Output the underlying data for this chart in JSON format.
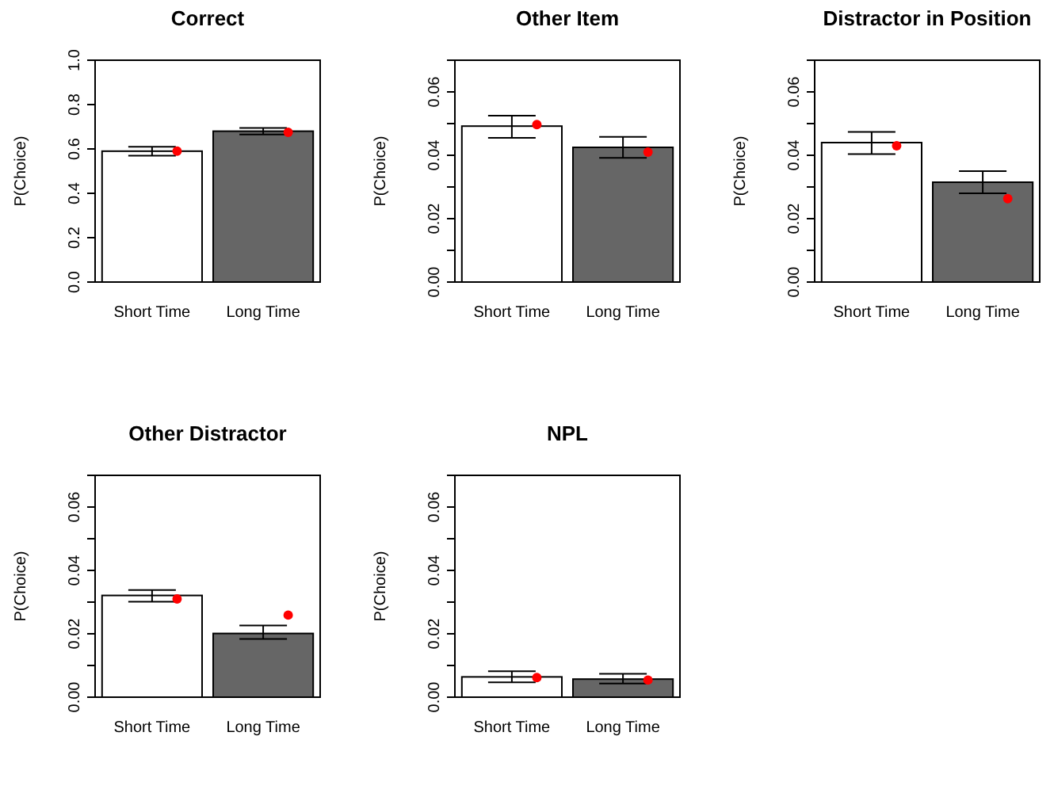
{
  "chart_data": [
    {
      "type": "bar",
      "title": "Correct",
      "ylabel": "P(Choice)",
      "categories": [
        "Short Time",
        "Long Time"
      ],
      "ylim": [
        0,
        1
      ],
      "yticks": [
        {
          "value": 0,
          "label": "0.0"
        },
        {
          "value": 0.2,
          "label": "0.2"
        },
        {
          "value": 0.4,
          "label": "0.4"
        },
        {
          "value": 0.6,
          "label": "0.6"
        },
        {
          "value": 0.8,
          "label": "0.8"
        },
        {
          "value": 1,
          "label": "1.0"
        }
      ],
      "marker": "circle",
      "series": [
        {
          "type": "bar",
          "values": [
            0.59,
            0.68
          ],
          "errors": [
            [
              0.57,
              0.61
            ],
            [
              0.665,
              0.695
            ]
          ],
          "colors": [
            "#ffffff",
            "#666666"
          ]
        },
        {
          "type": "scatter",
          "x": [
            "Short Time",
            "Long Time"
          ],
          "values": [
            0.59,
            0.675
          ],
          "color": "#ff0000"
        }
      ]
    },
    {
      "type": "bar",
      "title": "Other Item",
      "ylabel": "P(Choice)",
      "categories": [
        "Short Time",
        "Long Time"
      ],
      "ylim": [
        0,
        0.07
      ],
      "yticks": [
        {
          "value": 0,
          "label": "0.00"
        },
        {
          "value": 0.01,
          "label": null
        },
        {
          "value": 0.02,
          "label": "0.02"
        },
        {
          "value": 0.03,
          "label": null
        },
        {
          "value": 0.04,
          "label": "0.04"
        },
        {
          "value": 0.05,
          "label": null
        },
        {
          "value": 0.06,
          "label": "0.06"
        },
        {
          "value": 0.07,
          "label": null
        }
      ],
      "marker": "circle",
      "series": [
        {
          "type": "bar",
          "values": [
            0.0492,
            0.0425
          ],
          "errors": [
            [
              0.0455,
              0.0525
            ],
            [
              0.0392,
              0.0458
            ]
          ],
          "colors": [
            "#ffffff",
            "#666666"
          ]
        },
        {
          "type": "scatter",
          "x": [
            "Short Time",
            "Long Time"
          ],
          "values": [
            0.0497,
            0.041
          ],
          "color": "#ff0000"
        }
      ]
    },
    {
      "type": "bar",
      "title": "Distractor in Position",
      "ylabel": "P(Choice)",
      "categories": [
        "Short Time",
        "Long Time"
      ],
      "ylim": [
        0,
        0.07
      ],
      "yticks": [
        {
          "value": 0,
          "label": "0.00"
        },
        {
          "value": 0.01,
          "label": null
        },
        {
          "value": 0.02,
          "label": "0.02"
        },
        {
          "value": 0.03,
          "label": null
        },
        {
          "value": 0.04,
          "label": "0.04"
        },
        {
          "value": 0.05,
          "label": null
        },
        {
          "value": 0.06,
          "label": "0.06"
        },
        {
          "value": 0.07,
          "label": null
        }
      ],
      "marker": "circle",
      "series": [
        {
          "type": "bar",
          "values": [
            0.044,
            0.0315
          ],
          "errors": [
            [
              0.0404,
              0.0474
            ],
            [
              0.028,
              0.035
            ]
          ],
          "colors": [
            "#ffffff",
            "#666666"
          ]
        },
        {
          "type": "scatter",
          "x": [
            "Short Time",
            "Long Time"
          ],
          "values": [
            0.043,
            0.0263
          ],
          "color": "#ff0000"
        }
      ]
    },
    {
      "type": "bar",
      "title": "Other Distractor",
      "ylabel": "P(Choice)",
      "categories": [
        "Short Time",
        "Long Time"
      ],
      "ylim": [
        0,
        0.07
      ],
      "yticks": [
        {
          "value": 0,
          "label": "0.00"
        },
        {
          "value": 0.01,
          "label": null
        },
        {
          "value": 0.02,
          "label": "0.02"
        },
        {
          "value": 0.03,
          "label": null
        },
        {
          "value": 0.04,
          "label": "0.04"
        },
        {
          "value": 0.05,
          "label": null
        },
        {
          "value": 0.06,
          "label": "0.06"
        },
        {
          "value": 0.07,
          "label": null
        }
      ],
      "marker": "circle",
      "series": [
        {
          "type": "bar",
          "values": [
            0.0321,
            0.0201
          ],
          "errors": [
            [
              0.0301,
              0.0338
            ],
            [
              0.0184,
              0.0226
            ]
          ],
          "colors": [
            "#ffffff",
            "#666666"
          ]
        },
        {
          "type": "scatter",
          "x": [
            "Short Time",
            "Long Time"
          ],
          "values": [
            0.031,
            0.0259
          ],
          "color": "#ff0000"
        }
      ]
    },
    {
      "type": "bar",
      "title": "NPL",
      "ylabel": "P(Choice)",
      "categories": [
        "Short Time",
        "Long Time"
      ],
      "ylim": [
        0,
        0.07
      ],
      "yticks": [
        {
          "value": 0,
          "label": "0.00"
        },
        {
          "value": 0.01,
          "label": null
        },
        {
          "value": 0.02,
          "label": "0.02"
        },
        {
          "value": 0.03,
          "label": null
        },
        {
          "value": 0.04,
          "label": "0.04"
        },
        {
          "value": 0.05,
          "label": null
        },
        {
          "value": 0.06,
          "label": "0.06"
        },
        {
          "value": 0.07,
          "label": null
        }
      ],
      "marker": "circle",
      "series": [
        {
          "type": "bar",
          "values": [
            0.0064,
            0.0057
          ],
          "errors": [
            [
              0.0047,
              0.0082
            ],
            [
              0.0043,
              0.0074
            ]
          ],
          "colors": [
            "#ffffff",
            "#666666"
          ]
        },
        {
          "type": "scatter",
          "x": [
            "Short Time",
            "Long Time"
          ],
          "values": [
            0.0062,
            0.0054
          ],
          "color": "#ff0000"
        }
      ]
    }
  ]
}
